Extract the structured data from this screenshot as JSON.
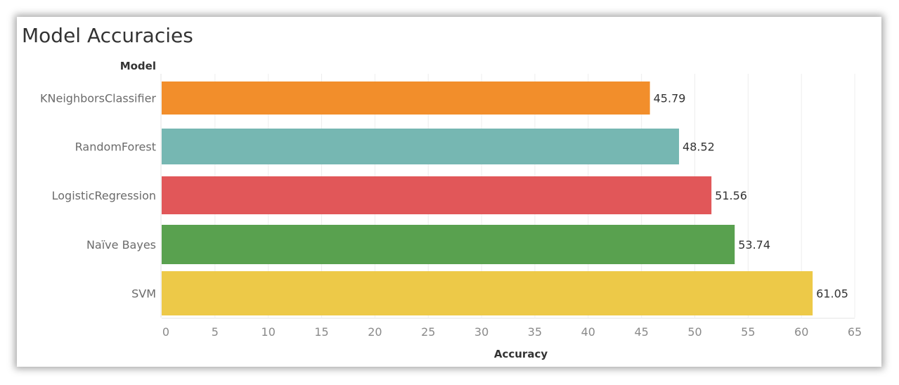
{
  "colors": {
    "background": "#ffffff",
    "gridline": "#eeeeee",
    "axis_text": "#8a8a8a",
    "category_text": "#6b6b6b",
    "title_text": "#333333",
    "value_text": "#333333"
  },
  "chart_data": {
    "type": "bar",
    "orientation": "horizontal",
    "title": "Model Accuracies",
    "ylabel": "Model",
    "xlabel": "Accuracy",
    "categories": [
      "KNeighborsClassifier",
      "RandomForest",
      "LogisticRegression",
      "Naïve Bayes",
      "SVM"
    ],
    "values": [
      45.79,
      48.52,
      51.56,
      53.74,
      61.05
    ],
    "value_labels": [
      "45.79",
      "48.52",
      "51.56",
      "53.74",
      "61.05"
    ],
    "bar_colors": [
      "#f28e2b",
      "#76b7b2",
      "#e15759",
      "#59a14f",
      "#edc948"
    ],
    "xlim": [
      0,
      65
    ],
    "xticks": [
      0,
      5,
      10,
      15,
      20,
      25,
      30,
      35,
      40,
      45,
      50,
      55,
      60,
      65
    ],
    "grid": true,
    "legend": "none"
  }
}
